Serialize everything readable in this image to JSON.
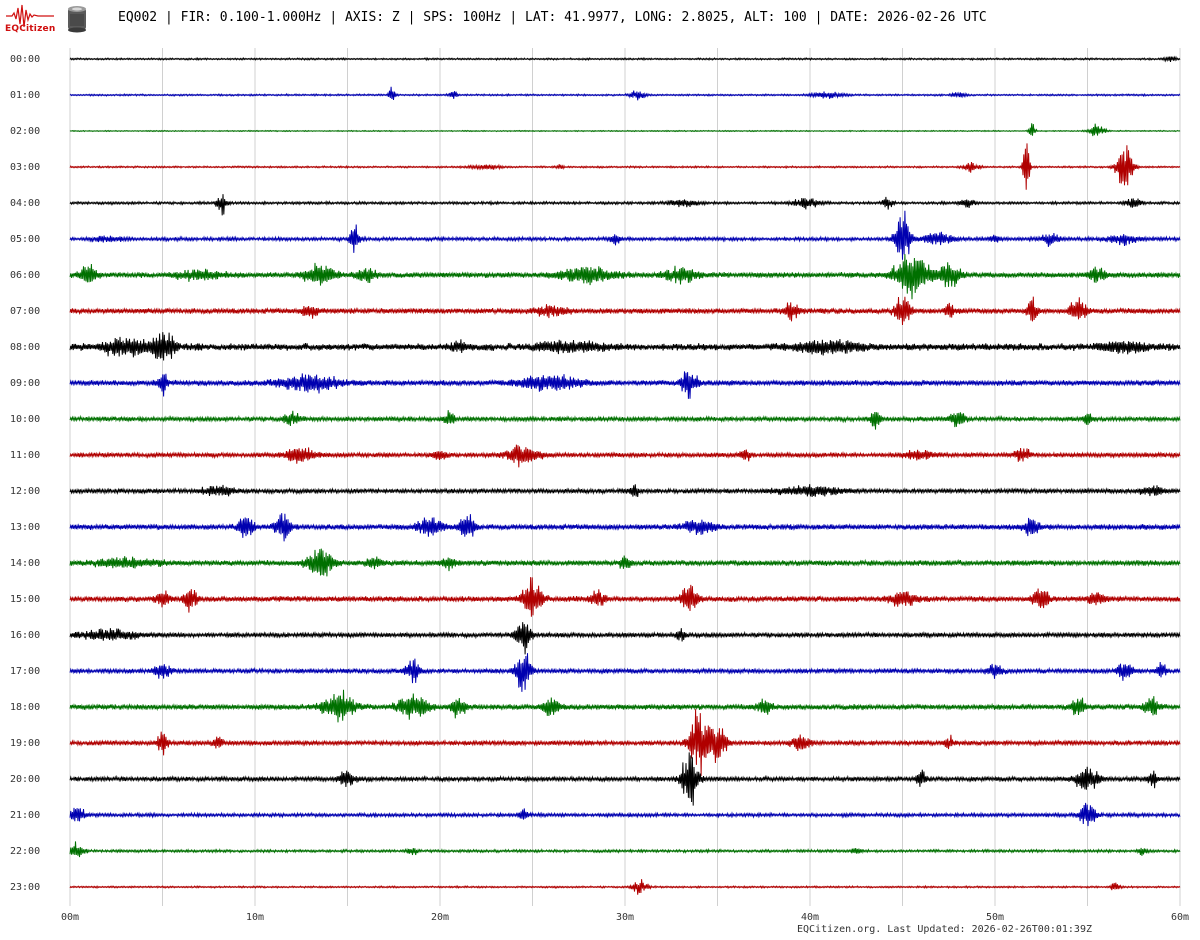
{
  "header": {
    "logo_text": "EQCitizen",
    "title": "EQ002 | FIR: 0.100-1.000Hz | AXIS: Z | SPS: 100Hz | LAT: 41.9977, LONG: 2.8025, ALT: 100 | DATE: 2026-02-26 UTC"
  },
  "footer": {
    "text": "EQCitizen.org. Last Updated: 2026-02-26T00:01:39Z"
  },
  "colors": {
    "cycle": [
      "#000000",
      "#0000b0",
      "#007000",
      "#b00000"
    ],
    "grid": "#d0d0d0",
    "logo": "#d01010"
  },
  "chart_data": {
    "type": "line",
    "title": "",
    "xlabel": "",
    "ylabel": "",
    "xlim": [
      0,
      60
    ],
    "x_ticks": [
      "00m",
      "10m",
      "20m",
      "30m",
      "40m",
      "50m",
      "60m"
    ],
    "grid": "vertical",
    "hour_labels": [
      "00:00",
      "01:00",
      "02:00",
      "03:00",
      "04:00",
      "05:00",
      "06:00",
      "07:00",
      "08:00",
      "09:00",
      "10:00",
      "11:00",
      "12:00",
      "13:00",
      "14:00",
      "15:00",
      "16:00",
      "17:00",
      "18:00",
      "19:00",
      "20:00",
      "21:00",
      "22:00",
      "23:00"
    ],
    "series": [
      {
        "noise": 1,
        "events": [
          [
            59.5,
            3,
            0.4
          ]
        ]
      },
      {
        "noise": 1,
        "events": [
          [
            17.4,
            9,
            0.2
          ],
          [
            20.7,
            5,
            0.3
          ],
          [
            30.7,
            6,
            0.5
          ],
          [
            41.0,
            4,
            1.0
          ],
          [
            48.0,
            3,
            0.5
          ]
        ]
      },
      {
        "noise": 0.6,
        "events": [
          [
            52.0,
            9,
            0.2
          ],
          [
            55.5,
            8,
            0.5
          ]
        ]
      },
      {
        "noise": 1,
        "events": [
          [
            22.5,
            3,
            1.0
          ],
          [
            26.5,
            4,
            0.2
          ],
          [
            48.7,
            6,
            0.5
          ],
          [
            51.7,
            40,
            0.2
          ],
          [
            57.0,
            30,
            0.5
          ]
        ]
      },
      {
        "noise": 1.5,
        "events": [
          [
            8.2,
            15,
            0.3
          ],
          [
            33.2,
            4,
            1.0
          ],
          [
            39.8,
            6,
            0.8
          ],
          [
            44.2,
            8,
            0.3
          ],
          [
            48.5,
            5,
            0.5
          ],
          [
            57.5,
            6,
            0.5
          ]
        ]
      },
      {
        "noise": 2,
        "events": [
          [
            2.0,
            3,
            1.0
          ],
          [
            15.4,
            20,
            0.3
          ],
          [
            29.5,
            6,
            0.3
          ],
          [
            45.0,
            35,
            0.5
          ],
          [
            47.0,
            8,
            1.0
          ],
          [
            50.0,
            5,
            0.3
          ],
          [
            53.0,
            8,
            0.5
          ],
          [
            57.0,
            6,
            1.0
          ]
        ]
      },
      {
        "noise": 3,
        "events": [
          [
            1.0,
            12,
            0.5
          ],
          [
            7.0,
            6,
            1.5
          ],
          [
            13.5,
            12,
            1.0
          ],
          [
            16.0,
            10,
            0.6
          ],
          [
            28.0,
            10,
            1.8
          ],
          [
            33.0,
            10,
            1.0
          ],
          [
            45.5,
            30,
            1.0
          ],
          [
            47.5,
            15,
            0.8
          ],
          [
            55.5,
            8,
            0.6
          ]
        ]
      },
      {
        "noise": 3,
        "events": [
          [
            13.0,
            8,
            0.5
          ],
          [
            26.0,
            6,
            1.0
          ],
          [
            39.0,
            10,
            0.5
          ],
          [
            45.0,
            20,
            0.5
          ],
          [
            47.5,
            12,
            0.3
          ],
          [
            52.0,
            18,
            0.3
          ],
          [
            54.5,
            15,
            0.5
          ]
        ]
      },
      {
        "noise": 4,
        "events": [
          [
            3.0,
            10,
            1.5
          ],
          [
            5.0,
            18,
            0.8
          ],
          [
            21.0,
            6,
            0.5
          ],
          [
            27.0,
            6,
            2.0
          ],
          [
            41.0,
            8,
            2.0
          ],
          [
            57.0,
            6,
            1.5
          ]
        ]
      },
      {
        "noise": 3,
        "events": [
          [
            5.0,
            15,
            0.3
          ],
          [
            13.0,
            10,
            2.0
          ],
          [
            26.0,
            10,
            2.0
          ],
          [
            33.5,
            18,
            0.5
          ]
        ]
      },
      {
        "noise": 2.5,
        "events": [
          [
            12.0,
            8,
            0.5
          ],
          [
            20.5,
            10,
            0.3
          ],
          [
            43.5,
            15,
            0.3
          ],
          [
            48.0,
            10,
            0.5
          ],
          [
            55.0,
            8,
            0.3
          ]
        ]
      },
      {
        "noise": 2.5,
        "events": [
          [
            12.5,
            10,
            1.0
          ],
          [
            20.0,
            6,
            0.5
          ],
          [
            24.5,
            14,
            1.0
          ],
          [
            36.5,
            8,
            0.3
          ],
          [
            46.0,
            6,
            1.0
          ],
          [
            51.5,
            8,
            0.5
          ]
        ]
      },
      {
        "noise": 2.5,
        "events": [
          [
            8.0,
            6,
            1.0
          ],
          [
            30.5,
            8,
            0.3
          ],
          [
            40.0,
            6,
            2.0
          ],
          [
            58.5,
            6,
            0.8
          ]
        ]
      },
      {
        "noise": 3,
        "events": [
          [
            9.5,
            15,
            0.5
          ],
          [
            11.5,
            18,
            0.5
          ],
          [
            19.5,
            12,
            0.8
          ],
          [
            21.5,
            14,
            0.5
          ],
          [
            34.0,
            8,
            1.0
          ],
          [
            52.0,
            12,
            0.5
          ]
        ]
      },
      {
        "noise": 3,
        "events": [
          [
            3.0,
            6,
            2.0
          ],
          [
            13.5,
            20,
            0.8
          ],
          [
            16.5,
            8,
            0.5
          ],
          [
            20.5,
            8,
            0.5
          ],
          [
            30.0,
            10,
            0.3
          ]
        ]
      },
      {
        "noise": 3,
        "events": [
          [
            5.0,
            8,
            0.5
          ],
          [
            6.5,
            16,
            0.4
          ],
          [
            25.0,
            25,
            0.6
          ],
          [
            28.5,
            10,
            0.5
          ],
          [
            33.5,
            20,
            0.5
          ],
          [
            45.0,
            8,
            1.0
          ],
          [
            52.5,
            14,
            0.5
          ],
          [
            55.5,
            10,
            0.5
          ]
        ]
      },
      {
        "noise": 2.5,
        "events": [
          [
            2.0,
            6,
            2.0
          ],
          [
            24.5,
            20,
            0.5
          ],
          [
            33.0,
            8,
            0.3
          ]
        ]
      },
      {
        "noise": 2.5,
        "events": [
          [
            5.0,
            10,
            0.5
          ],
          [
            18.5,
            15,
            0.5
          ],
          [
            24.5,
            25,
            0.5
          ],
          [
            50.0,
            8,
            0.5
          ],
          [
            57.0,
            12,
            0.5
          ],
          [
            59.0,
            10,
            0.3
          ]
        ]
      },
      {
        "noise": 3,
        "events": [
          [
            14.5,
            20,
            1.0
          ],
          [
            18.5,
            15,
            1.0
          ],
          [
            21.0,
            12,
            0.5
          ],
          [
            26.0,
            12,
            0.5
          ],
          [
            37.5,
            8,
            0.5
          ],
          [
            54.5,
            10,
            0.5
          ],
          [
            58.5,
            12,
            0.5
          ]
        ]
      },
      {
        "noise": 2.5,
        "events": [
          [
            5.0,
            18,
            0.3
          ],
          [
            8.0,
            10,
            0.3
          ],
          [
            34.0,
            40,
            0.6
          ],
          [
            35.0,
            30,
            0.5
          ],
          [
            39.5,
            10,
            0.6
          ],
          [
            47.5,
            8,
            0.3
          ]
        ]
      },
      {
        "noise": 2.5,
        "events": [
          [
            15.0,
            10,
            0.5
          ],
          [
            33.5,
            35,
            0.5
          ],
          [
            46.0,
            12,
            0.3
          ],
          [
            55.0,
            15,
            0.8
          ],
          [
            58.5,
            10,
            0.3
          ]
        ]
      },
      {
        "noise": 2,
        "events": [
          [
            0.3,
            12,
            0.5
          ],
          [
            24.5,
            8,
            0.3
          ],
          [
            55.0,
            15,
            0.5
          ]
        ]
      },
      {
        "noise": 1.5,
        "events": [
          [
            0.3,
            10,
            0.5
          ],
          [
            18.5,
            5,
            0.3
          ],
          [
            42.5,
            5,
            0.3
          ],
          [
            58.0,
            6,
            0.3
          ]
        ]
      },
      {
        "noise": 1,
        "events": [
          [
            30.8,
            8,
            0.5
          ],
          [
            56.5,
            5,
            0.3
          ]
        ]
      }
    ]
  }
}
